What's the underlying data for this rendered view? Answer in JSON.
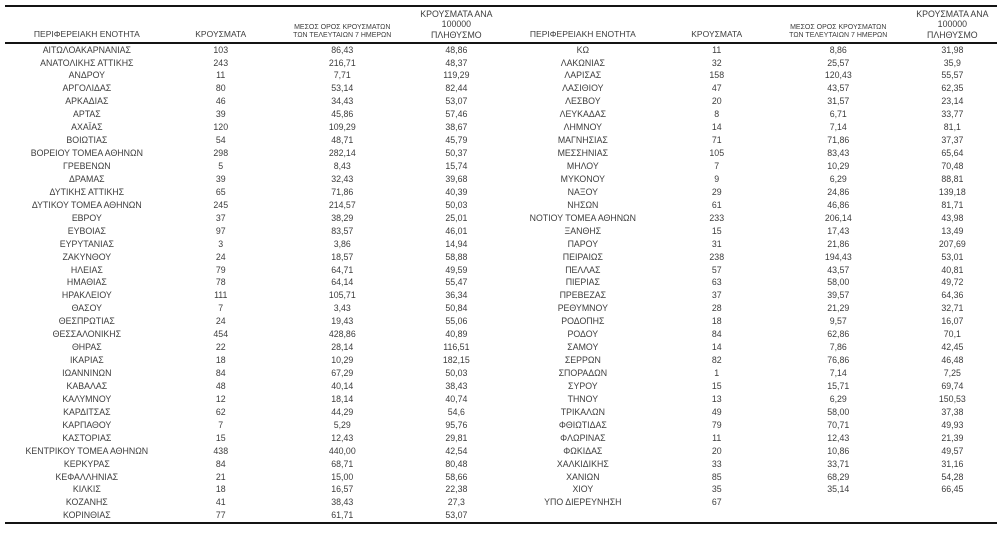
{
  "table": {
    "headers": {
      "region": "ΠΕΡΙΦΕΡΕΙΑΚΗ ΕΝΟΤΗΤΑ",
      "cases": "ΚΡΟΥΣΜΑΤΑ",
      "avg7_l1": "ΜΕΣΟΣ ΟΡΟΣ ΚΡΟΥΣΜΑΤΩΝ",
      "avg7_l2": "ΤΩΝ ΤΕΛΕΥΤΑΙΩΝ 7 ΗΜΕΡΩΝ",
      "per100k_l1": "ΚΡΟΥΣΜΑΤΑ ΑΝΑ 100000",
      "per100k_l2": "ΠΛΗΘΥΣΜΟ"
    },
    "left_rows": [
      [
        "ΑΙΤΩΛΟΑΚΑΡΝΑΝΙΑΣ",
        "103",
        "86,43",
        "48,86"
      ],
      [
        "ΑΝΑΤΟΛΙΚΗΣ ΑΤΤΙΚΗΣ",
        "243",
        "216,71",
        "48,37"
      ],
      [
        "ΑΝΔΡΟΥ",
        "11",
        "7,71",
        "119,29"
      ],
      [
        "ΑΡΓΟΛΙΔΑΣ",
        "80",
        "53,14",
        "82,44"
      ],
      [
        "ΑΡΚΑΔΙΑΣ",
        "46",
        "34,43",
        "53,07"
      ],
      [
        "ΑΡΤΑΣ",
        "39",
        "45,86",
        "57,46"
      ],
      [
        "ΑΧΑΪΑΣ",
        "120",
        "109,29",
        "38,67"
      ],
      [
        "ΒΟΙΩΤΙΑΣ",
        "54",
        "48,71",
        "45,79"
      ],
      [
        "ΒΟΡΕΙΟΥ ΤΟΜΕΑ ΑΘΗΝΩΝ",
        "298",
        "282,14",
        "50,37"
      ],
      [
        "ΓΡΕΒΕΝΩΝ",
        "5",
        "8,43",
        "15,74"
      ],
      [
        "ΔΡΑΜΑΣ",
        "39",
        "32,43",
        "39,68"
      ],
      [
        "ΔΥΤΙΚΗΣ ΑΤΤΙΚΗΣ",
        "65",
        "71,86",
        "40,39"
      ],
      [
        "ΔΥΤΙΚΟΥ ΤΟΜΕΑ ΑΘΗΝΩΝ",
        "245",
        "214,57",
        "50,03"
      ],
      [
        "ΕΒΡΟΥ",
        "37",
        "38,29",
        "25,01"
      ],
      [
        "ΕΥΒΟΙΑΣ",
        "97",
        "83,57",
        "46,01"
      ],
      [
        "ΕΥΡΥΤΑΝΙΑΣ",
        "3",
        "3,86",
        "14,94"
      ],
      [
        "ΖΑΚΥΝΘΟΥ",
        "24",
        "18,57",
        "58,88"
      ],
      [
        "ΗΛΕΙΑΣ",
        "79",
        "64,71",
        "49,59"
      ],
      [
        "ΗΜΑΘΙΑΣ",
        "78",
        "64,14",
        "55,47"
      ],
      [
        "ΗΡΑΚΛΕΙΟΥ",
        "111",
        "105,71",
        "36,34"
      ],
      [
        "ΘΑΣΟΥ",
        "7",
        "3,43",
        "50,84"
      ],
      [
        "ΘΕΣΠΡΩΤΙΑΣ",
        "24",
        "19,43",
        "55,06"
      ],
      [
        "ΘΕΣΣΑΛΟΝΙΚΗΣ",
        "454",
        "428,86",
        "40,89"
      ],
      [
        "ΘΗΡΑΣ",
        "22",
        "28,14",
        "116,51"
      ],
      [
        "ΙΚΑΡΙΑΣ",
        "18",
        "10,29",
        "182,15"
      ],
      [
        "ΙΩΑΝΝΙΝΩΝ",
        "84",
        "67,29",
        "50,03"
      ],
      [
        "ΚΑΒΑΛΑΣ",
        "48",
        "40,14",
        "38,43"
      ],
      [
        "ΚΑΛΥΜΝΟΥ",
        "12",
        "18,14",
        "40,74"
      ],
      [
        "ΚΑΡΔΙΤΣΑΣ",
        "62",
        "44,29",
        "54,6"
      ],
      [
        "ΚΑΡΠΑΘΟΥ",
        "7",
        "5,29",
        "95,76"
      ],
      [
        "ΚΑΣΤΟΡΙΑΣ",
        "15",
        "12,43",
        "29,81"
      ],
      [
        "ΚΕΝΤΡΙΚΟΥ ΤΟΜΕΑ ΑΘΗΝΩΝ",
        "438",
        "440,00",
        "42,54"
      ],
      [
        "ΚΕΡΚΥΡΑΣ",
        "84",
        "68,71",
        "80,48"
      ],
      [
        "ΚΕΦΑΛΛΗΝΙΑΣ",
        "21",
        "15,00",
        "58,66"
      ],
      [
        "ΚΙΛΚΙΣ",
        "18",
        "16,57",
        "22,38"
      ],
      [
        "ΚΟΖΑΝΗΣ",
        "41",
        "38,43",
        "27,3"
      ],
      [
        "ΚΟΡΙΝΘΙΑΣ",
        "77",
        "61,71",
        "53,07"
      ]
    ],
    "right_rows": [
      [
        "ΚΩ",
        "11",
        "8,86",
        "31,98"
      ],
      [
        "ΛΑΚΩΝΙΑΣ",
        "32",
        "25,57",
        "35,9"
      ],
      [
        "ΛΑΡΙΣΑΣ",
        "158",
        "120,43",
        "55,57"
      ],
      [
        "ΛΑΣΙΘΙΟΥ",
        "47",
        "43,57",
        "62,35"
      ],
      [
        "ΛΕΣΒΟΥ",
        "20",
        "31,57",
        "23,14"
      ],
      [
        "ΛΕΥΚΑΔΑΣ",
        "8",
        "6,71",
        "33,77"
      ],
      [
        "ΛΗΜΝΟΥ",
        "14",
        "7,14",
        "81,1"
      ],
      [
        "ΜΑΓΝΗΣΙΑΣ",
        "71",
        "71,86",
        "37,37"
      ],
      [
        "ΜΕΣΣΗΝΙΑΣ",
        "105",
        "83,43",
        "65,64"
      ],
      [
        "ΜΗΛΟΥ",
        "7",
        "10,29",
        "70,48"
      ],
      [
        "ΜΥΚΟΝΟΥ",
        "9",
        "6,29",
        "88,81"
      ],
      [
        "ΝΑΞΟΥ",
        "29",
        "24,86",
        "139,18"
      ],
      [
        "ΝΗΣΩΝ",
        "61",
        "46,86",
        "81,71"
      ],
      [
        "ΝΟΤΙΟΥ ΤΟΜΕΑ ΑΘΗΝΩΝ",
        "233",
        "206,14",
        "43,98"
      ],
      [
        "ΞΑΝΘΗΣ",
        "15",
        "17,43",
        "13,49"
      ],
      [
        "ΠΑΡΟΥ",
        "31",
        "21,86",
        "207,69"
      ],
      [
        "ΠΕΙΡΑΙΩΣ",
        "238",
        "194,43",
        "53,01"
      ],
      [
        "ΠΕΛΛΑΣ",
        "57",
        "43,57",
        "40,81"
      ],
      [
        "ΠΙΕΡΙΑΣ",
        "63",
        "58,00",
        "49,72"
      ],
      [
        "ΠΡΕΒΕΖΑΣ",
        "37",
        "39,57",
        "64,36"
      ],
      [
        "ΡΕΘΥΜΝΟΥ",
        "28",
        "21,29",
        "32,71"
      ],
      [
        "ΡΟΔΟΠΗΣ",
        "18",
        "9,57",
        "16,07"
      ],
      [
        "ΡΟΔΟΥ",
        "84",
        "62,86",
        "70,1"
      ],
      [
        "ΣΑΜΟΥ",
        "14",
        "7,86",
        "42,45"
      ],
      [
        "ΣΕΡΡΩΝ",
        "82",
        "76,86",
        "46,48"
      ],
      [
        "ΣΠΟΡΑΔΩΝ",
        "1",
        "7,14",
        "7,25"
      ],
      [
        "ΣΥΡΟΥ",
        "15",
        "15,71",
        "69,74"
      ],
      [
        "ΤΗΝΟΥ",
        "13",
        "6,29",
        "150,53"
      ],
      [
        "ΤΡΙΚΑΛΩΝ",
        "49",
        "58,00",
        "37,38"
      ],
      [
        "ΦΘΙΩΤΙΔΑΣ",
        "79",
        "70,71",
        "49,93"
      ],
      [
        "ΦΛΩΡΙΝΑΣ",
        "11",
        "12,43",
        "21,39"
      ],
      [
        "ΦΩΚΙΔΑΣ",
        "20",
        "10,86",
        "49,57"
      ],
      [
        "ΧΑΛΚΙΔΙΚΗΣ",
        "33",
        "33,71",
        "31,16"
      ],
      [
        "ΧΑΝΙΩΝ",
        "85",
        "68,29",
        "54,28"
      ],
      [
        "ΧΙΟΥ",
        "35",
        "35,14",
        "66,45"
      ],
      [
        "ΥΠΟ ΔΙΕΡΕΥΝΗΣΗ",
        "67",
        "",
        ""
      ]
    ]
  }
}
